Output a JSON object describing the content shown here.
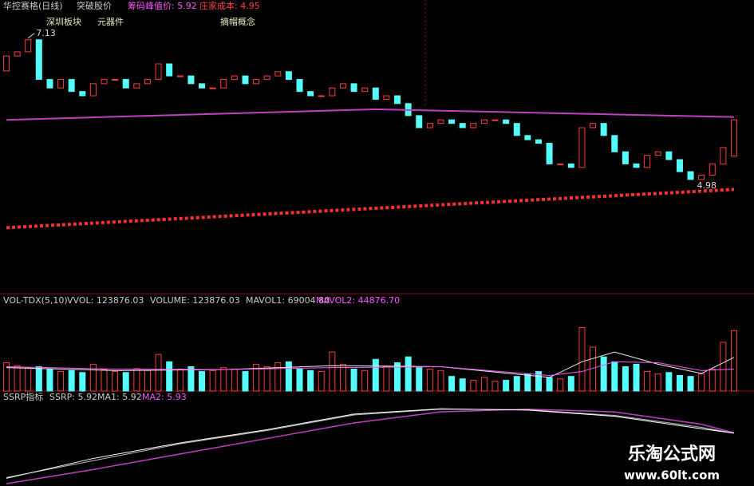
{
  "header": {
    "stock": "华控赛格(日线)",
    "indicator": "突破股价",
    "peak_price": "筹码峰值价: 5.92",
    "dealer_cost": "庄家成本: 4.95",
    "tags": [
      "深圳板块",
      "元器件",
      "摘帽概念"
    ]
  },
  "price_panel": {
    "ylim": [
      3.46,
      7.6
    ],
    "open": [
      6.6,
      6.81,
      6.87,
      7.04,
      6.48,
      6.36,
      6.48,
      6.31,
      6.25,
      6.42,
      6.48,
      6.48,
      6.36,
      6.42,
      6.48,
      6.7,
      6.53,
      6.53,
      6.42,
      6.36,
      6.36,
      6.48,
      6.53,
      6.42,
      6.48,
      6.53,
      6.59,
      6.48,
      6.31,
      6.25,
      6.25,
      6.36,
      6.42,
      6.31,
      6.36,
      6.2,
      6.25,
      6.14,
      5.97,
      5.8,
      5.86,
      5.91,
      5.86,
      5.8,
      5.86,
      5.91,
      5.91,
      5.86,
      5.69,
      5.63,
      5.58,
      5.29,
      5.29,
      5.24,
      5.8,
      5.86,
      5.69,
      5.46,
      5.29,
      5.24,
      5.41,
      5.46,
      5.35,
      5.18,
      5.07,
      5.13,
      5.29,
      5.4
    ],
    "close": [
      6.81,
      6.87,
      7.04,
      6.48,
      6.36,
      6.48,
      6.31,
      6.25,
      6.42,
      6.48,
      6.48,
      6.36,
      6.42,
      6.48,
      6.7,
      6.53,
      6.53,
      6.42,
      6.36,
      6.36,
      6.48,
      6.53,
      6.42,
      6.48,
      6.53,
      6.59,
      6.48,
      6.31,
      6.25,
      6.25,
      6.36,
      6.42,
      6.31,
      6.36,
      6.2,
      6.25,
      6.14,
      5.97,
      5.8,
      5.86,
      5.91,
      5.86,
      5.8,
      5.86,
      5.91,
      5.91,
      5.86,
      5.69,
      5.63,
      5.58,
      5.29,
      5.29,
      5.24,
      5.8,
      5.86,
      5.69,
      5.46,
      5.29,
      5.24,
      5.41,
      5.46,
      5.35,
      5.18,
      5.07,
      5.13,
      5.29,
      5.52,
      5.91
    ],
    "high_label": {
      "index": 2,
      "value": 7.13
    },
    "low_label": {
      "index": 63,
      "value": 4.98
    },
    "peak_line": {
      "x": [
        0,
        34,
        67
      ],
      "values": [
        5.91,
        6.06,
        5.95
      ]
    },
    "cost_line": {
      "x": [
        0,
        67
      ],
      "values": [
        4.39,
        4.93
      ]
    }
  },
  "volume_panel": {
    "title": "VOL-TDX(5,10)",
    "readouts": [
      "VVOL: 123876.03",
      "VOLUME: 123876.03",
      "MAVOL1: 69004.80",
      "MAVOL2: 44876.70"
    ],
    "ylim": [
      0,
      180000
    ],
    "values": [
      58000,
      52000,
      48000,
      50000,
      45000,
      40000,
      42000,
      38000,
      55000,
      44000,
      40000,
      38000,
      46000,
      42000,
      75000,
      60000,
      45000,
      50000,
      40000,
      42000,
      48000,
      45000,
      40000,
      55000,
      50000,
      58000,
      60000,
      45000,
      42000,
      40000,
      80000,
      55000,
      45000,
      42000,
      65000,
      50000,
      58000,
      70000,
      48000,
      45000,
      42000,
      30000,
      25000,
      22000,
      28000,
      20000,
      22000,
      30000,
      35000,
      40000,
      28000,
      25000,
      30000,
      130000,
      90000,
      70000,
      60000,
      50000,
      55000,
      40000,
      35000,
      38000,
      32000,
      30000,
      35000,
      45000,
      100000,
      123876
    ],
    "mavol1": {
      "x": [
        0,
        10,
        20,
        30,
        40,
        50,
        53,
        56,
        60,
        64,
        67
      ],
      "values": [
        48000,
        42000,
        44000,
        52000,
        50000,
        28000,
        60000,
        80000,
        55000,
        36000,
        69004.8
      ]
    },
    "mavol2": {
      "x": [
        0,
        10,
        20,
        30,
        40,
        50,
        53,
        56,
        60,
        64,
        67
      ],
      "values": [
        50000,
        45000,
        44000,
        48000,
        50000,
        32000,
        40000,
        60000,
        58000,
        42000,
        44876.7
      ]
    }
  },
  "ssrp_panel": {
    "title": "SSRP指标",
    "readouts": [
      "SSRP: 5.92",
      "MA1: 5.92",
      "MA2: 5.93"
    ],
    "ylim": [
      4.8,
      6.6
    ],
    "ssrp": {
      "x": [
        0,
        8,
        16,
        24,
        32,
        40,
        48,
        56,
        64,
        67
      ],
      "values": [
        4.9,
        5.35,
        5.7,
        6.0,
        6.35,
        6.47,
        6.44,
        6.3,
        6.02,
        5.92
      ]
    },
    "ma1": {
      "x": [
        0,
        8,
        16,
        24,
        32,
        40,
        48,
        56,
        64,
        67
      ],
      "values": [
        4.92,
        5.3,
        5.68,
        5.98,
        6.33,
        6.46,
        6.45,
        6.32,
        6.05,
        5.92
      ]
    },
    "ma2": {
      "x": [
        0,
        8,
        16,
        24,
        32,
        40,
        48,
        56,
        64,
        67
      ],
      "values": [
        4.78,
        5.1,
        5.45,
        5.8,
        6.15,
        6.4,
        6.46,
        6.4,
        6.12,
        5.93
      ]
    }
  },
  "watermark": {
    "name": "乐淘公式网",
    "url": "www.60lt.com"
  }
}
